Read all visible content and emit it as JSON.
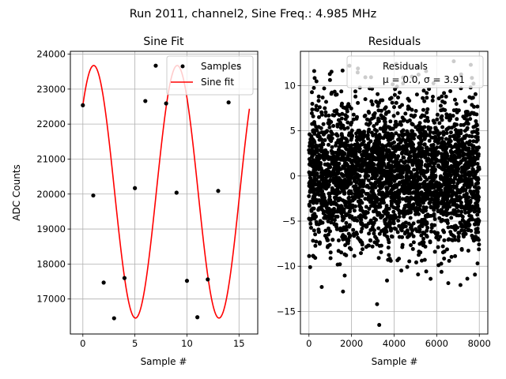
{
  "suptitle": "Run 2011, channel2, Sine Freq.: 4.985 MHz",
  "chart_data": [
    {
      "type": "line",
      "title": "Sine Fit",
      "xlabel": "Sample #",
      "ylabel": "ADC Counts",
      "xlim": [
        -1.2,
        16.8
      ],
      "ylim": [
        16000,
        24080
      ],
      "xticks": [
        0,
        5,
        10,
        15
      ],
      "yticks": [
        17000,
        18000,
        19000,
        20000,
        21000,
        22000,
        23000,
        24000
      ],
      "grid": true,
      "legend_position": "upper right",
      "series": [
        {
          "name": "Samples",
          "style": "markers",
          "color": "#000000",
          "x": [
            0,
            1,
            2,
            3,
            4,
            5,
            6,
            7,
            8,
            9,
            10,
            11,
            12,
            13,
            14,
            15
          ],
          "y": [
            22540,
            19960,
            17470,
            16450,
            17600,
            20170,
            22660,
            23670,
            22590,
            20040,
            17520,
            16480,
            17560,
            20090,
            22620,
            23650
          ]
        },
        {
          "name": "Sine fit",
          "style": "line",
          "color": "#ff0000",
          "model": {
            "offset": 20065,
            "amplitude": 3610,
            "period_samples": 8.024,
            "phase_rad": 0.755,
            "x_start": 0,
            "x_end": 16
          }
        }
      ]
    },
    {
      "type": "scatter",
      "title": "Residuals",
      "xlabel": "Sample #",
      "xlim": [
        -400,
        8400
      ],
      "ylim": [
        -17.5,
        13.8
      ],
      "xticks": [
        0,
        2000,
        4000,
        6000,
        8000
      ],
      "yticks": [
        -15,
        -10,
        -5,
        0,
        5,
        10
      ],
      "grid": true,
      "legend_position": "upper right",
      "legend_label": "Residuals\n$\\mu$ = 0.0, $\\sigma$ = 3.91",
      "legend_lines": [
        "Residuals",
        "μ = 0.0, σ = 3.91"
      ],
      "series": [
        {
          "name": "Residuals",
          "color": "#000000",
          "distribution": {
            "n": 8000,
            "x_range": [
              0,
              8000
            ],
            "mean": 0.0,
            "sigma": 3.91,
            "clip": [
              -16.5,
              12.7
            ]
          },
          "notable_points": [
            [
              3300,
              -16.5
            ],
            [
              3200,
              -14.2
            ],
            [
              600,
              -12.3
            ],
            [
              1600,
              -12.8
            ],
            [
              6800,
              12.7
            ],
            [
              4100,
              12.4
            ],
            [
              7600,
              12.3
            ],
            [
              1900,
              12.2
            ],
            [
              2300,
              11.9
            ],
            [
              5500,
              11.6
            ]
          ]
        }
      ]
    }
  ]
}
